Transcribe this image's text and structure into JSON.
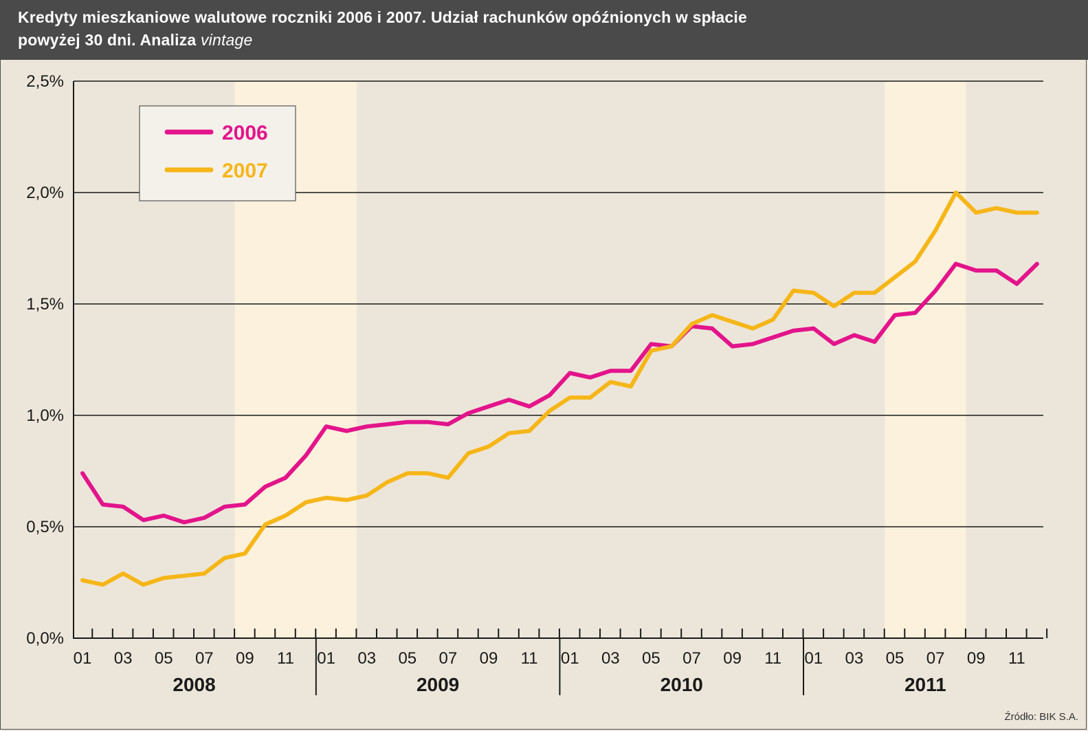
{
  "title": {
    "line1": "Kredyty mieszkaniowe walutowe roczniki 2006 i 2007. Udział rachunków opóźnionych w spłacie",
    "line2_prefix": "powyżej 30 dni. Analiza ",
    "line2_italic": "vintage"
  },
  "source": "Źródło: BIK S.A.",
  "colors": {
    "series_2006": "#e3148b",
    "series_2007": "#f6b619",
    "background": "#ece6da",
    "highlight": "#fcf1dc",
    "header": "#4a4a4a"
  },
  "chart_data": {
    "type": "line",
    "title": "Kredyty mieszkaniowe walutowe roczniki 2006 i 2007. Udział rachunków opóźnionych w spłacie powyżej 30 dni. Analiza vintage",
    "xlabel": "",
    "ylabel": "",
    "ylim": [
      0,
      2.5
    ],
    "y_ticks": [
      0,
      0.5,
      1.0,
      1.5,
      2.0,
      2.5
    ],
    "y_tick_labels": [
      "0,0%",
      "0,5%",
      "1,0%",
      "1,5%",
      "2,0%",
      "2,5%"
    ],
    "grid": true,
    "legend_position": "top-left",
    "years": [
      "2008",
      "2009",
      "2010",
      "2011"
    ],
    "month_labels": [
      "01",
      "03",
      "05",
      "07",
      "09",
      "11"
    ],
    "months_per_year": 12,
    "highlight_ranges": [
      [
        8.5,
        14.5
      ],
      [
        40.5,
        44.5
      ]
    ],
    "series": [
      {
        "name": "2006",
        "color": "#e3148b",
        "values": [
          0.74,
          0.6,
          0.59,
          0.53,
          0.55,
          0.52,
          0.54,
          0.59,
          0.6,
          0.68,
          0.72,
          0.82,
          0.95,
          0.93,
          0.95,
          0.96,
          0.97,
          0.97,
          0.96,
          1.01,
          1.04,
          1.07,
          1.04,
          1.09,
          1.19,
          1.17,
          1.2,
          1.2,
          1.32,
          1.31,
          1.4,
          1.39,
          1.31,
          1.32,
          1.35,
          1.38,
          1.39,
          1.32,
          1.36,
          1.33,
          1.45,
          1.46,
          1.56,
          1.68,
          1.65,
          1.65,
          1.59,
          1.68
        ]
      },
      {
        "name": "2007",
        "color": "#f6b619",
        "values": [
          0.26,
          0.24,
          0.29,
          0.24,
          0.27,
          0.28,
          0.29,
          0.36,
          0.38,
          0.51,
          0.55,
          0.61,
          0.63,
          0.62,
          0.64,
          0.7,
          0.74,
          0.74,
          0.72,
          0.83,
          0.86,
          0.92,
          0.93,
          1.02,
          1.08,
          1.08,
          1.15,
          1.13,
          1.29,
          1.31,
          1.41,
          1.45,
          1.42,
          1.39,
          1.43,
          1.56,
          1.55,
          1.49,
          1.55,
          1.55,
          1.62,
          1.69,
          1.83,
          2.0,
          1.91,
          1.93,
          1.91,
          1.91
        ]
      }
    ]
  }
}
